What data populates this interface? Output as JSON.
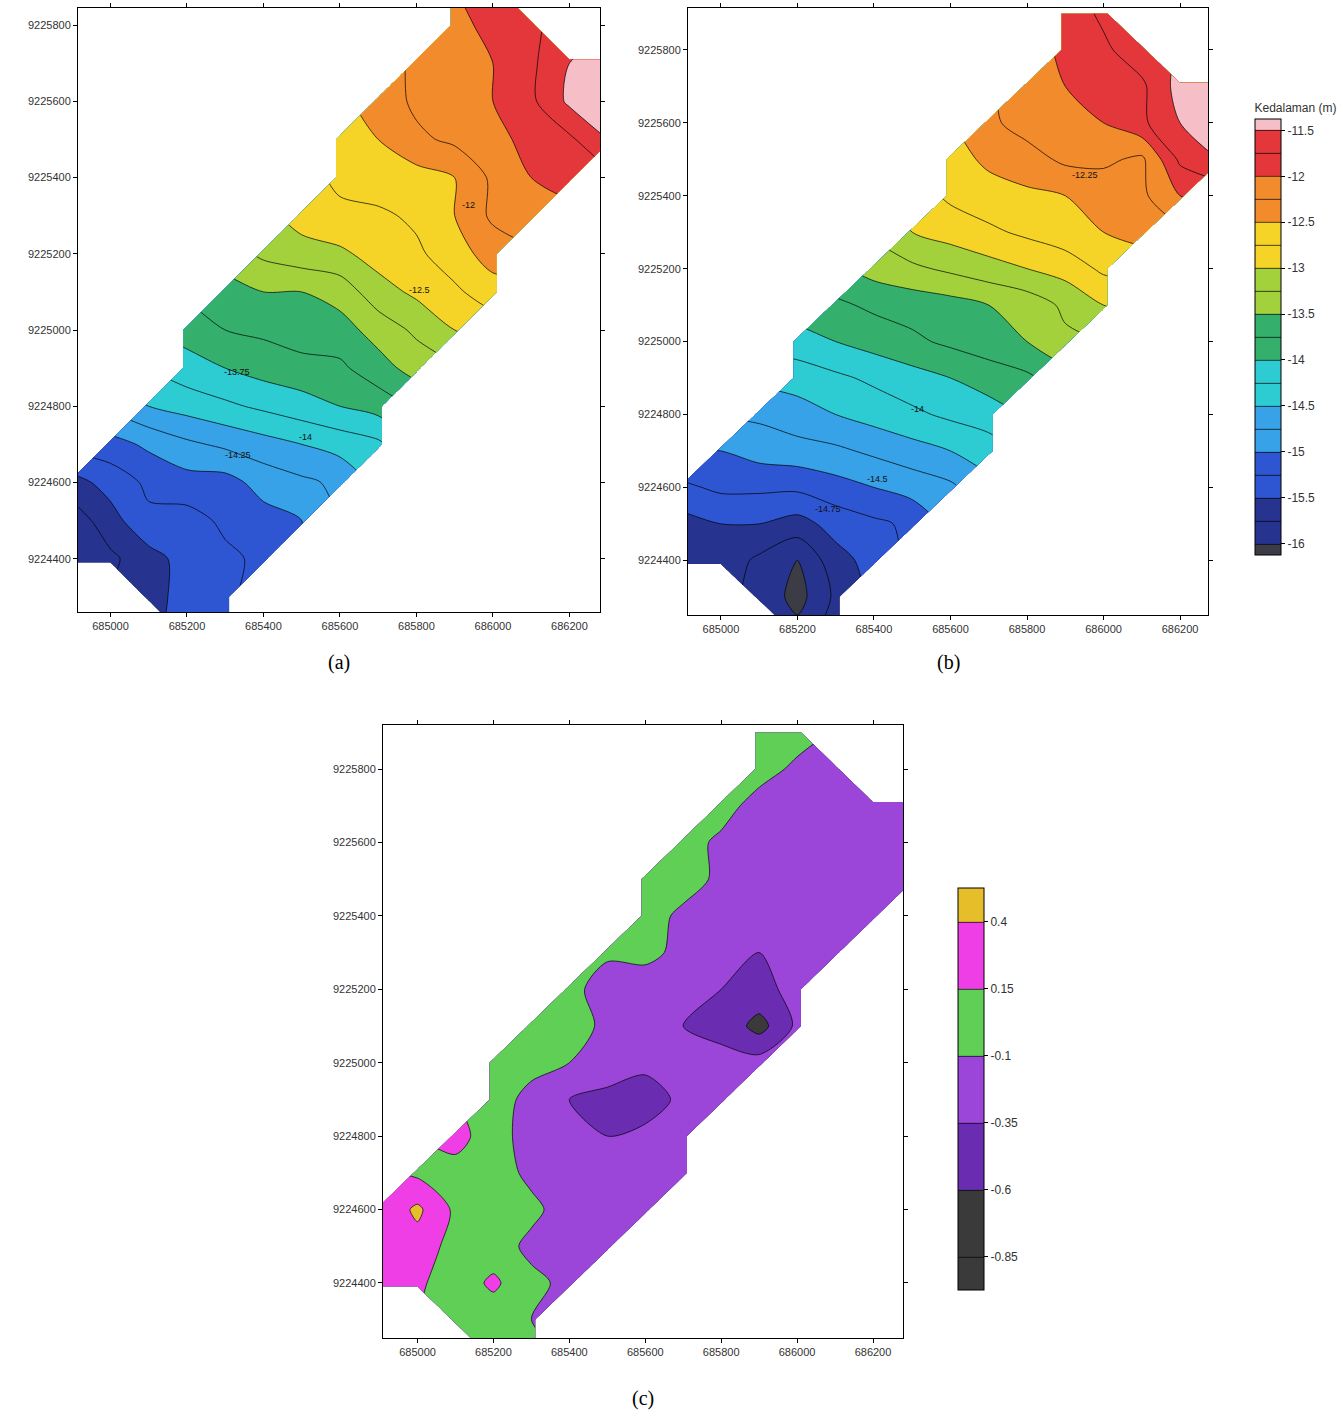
{
  "chart_data": [
    {
      "type": "contour",
      "panel": "(a)",
      "x": [
        684900,
        685000,
        685100,
        685200,
        685300,
        685400,
        685500,
        685600,
        685700,
        685800,
        685900,
        686000,
        686100,
        686200,
        686300
      ],
      "y": [
        9224200,
        9224300,
        9224400,
        9224500,
        9224600,
        9224700,
        9224800,
        9224900,
        9225000,
        9225100,
        9225200,
        9225300,
        9225400,
        9225500,
        9225600,
        9225700,
        9225800,
        9225900
      ],
      "z": [
        [
          null,
          null,
          null,
          -15.4,
          -15.3,
          null,
          null,
          null,
          null,
          null,
          null,
          null,
          null,
          null,
          null
        ],
        [
          null,
          null,
          -15.6,
          -15.4,
          -15.3,
          null,
          null,
          null,
          null,
          null,
          null,
          null,
          null,
          null,
          null
        ],
        [
          -15.95,
          -15.8,
          -15.6,
          -15.4,
          -15.3,
          -15.2,
          null,
          null,
          null,
          null,
          null,
          null,
          null,
          null,
          null
        ],
        [
          -15.9,
          -15.6,
          -15.3,
          -15.35,
          -15.2,
          -15.1,
          -15,
          null,
          null,
          null,
          null,
          null,
          null,
          null,
          null
        ],
        [
          -15.6,
          -15.4,
          -15.2,
          -15.1,
          -15.1,
          -14.9,
          -14.8,
          -14.7,
          null,
          null,
          null,
          null,
          null,
          null,
          null
        ],
        [
          null,
          -15.1,
          -14.95,
          -14.8,
          -14.7,
          -14.6,
          -14.5,
          -14.4,
          -14.3,
          null,
          null,
          null,
          null,
          null,
          null
        ],
        [
          null,
          null,
          -14.5,
          -14.4,
          -14.3,
          -14.2,
          -14.1,
          -14,
          -13.9,
          null,
          null,
          null,
          null,
          null,
          null
        ],
        [
          null,
          null,
          null,
          -14.1,
          -14,
          -13.9,
          -13.85,
          -13.8,
          -13.6,
          -13.4,
          null,
          null,
          null,
          null,
          null
        ],
        [
          null,
          null,
          null,
          -13.9,
          -13.75,
          -13.7,
          -13.6,
          -13.6,
          -13.4,
          -13.2,
          -13,
          null,
          null,
          null,
          null
        ],
        [
          null,
          null,
          null,
          null,
          -13.6,
          -13.5,
          -13.5,
          -13.4,
          -13.1,
          -12.95,
          -12.8,
          -12.6,
          null,
          null,
          null
        ],
        [
          null,
          null,
          null,
          null,
          null,
          -13.2,
          -13.1,
          -13.05,
          -12.9,
          -12.8,
          -12.6,
          -12.4,
          null,
          null,
          null
        ],
        [
          null,
          null,
          null,
          null,
          null,
          null,
          -12.9,
          -12.8,
          -12.8,
          -12.7,
          -12.5,
          -12.2,
          -12,
          null,
          null
        ],
        [
          null,
          null,
          null,
          null,
          null,
          null,
          null,
          -12.7,
          -12.6,
          -12.6,
          -12.5,
          -12.2,
          -12,
          -11.9,
          null
        ],
        [
          null,
          null,
          null,
          null,
          null,
          null,
          null,
          -12.6,
          -12.5,
          -12.3,
          -12.2,
          -12.1,
          -11.9,
          -11.8,
          -11.5
        ],
        [
          null,
          null,
          null,
          null,
          null,
          null,
          null,
          null,
          -12.4,
          -12.2,
          -12.1,
          -12,
          -11.8,
          -11.45,
          -11.4
        ],
        [
          null,
          null,
          null,
          null,
          null,
          null,
          null,
          null,
          null,
          -12.2,
          -12.1,
          -12,
          -11.8,
          -11.5,
          -11.4
        ],
        [
          null,
          null,
          null,
          null,
          null,
          null,
          null,
          null,
          null,
          null,
          -12.05,
          -11.95,
          -11.8,
          null,
          null
        ],
        [
          null,
          null,
          null,
          null,
          null,
          null,
          null,
          null,
          null,
          null,
          -12,
          -11.9,
          null,
          null,
          null
        ]
      ],
      "levels": {
        "start": -16,
        "end": -11.5,
        "size": 0.25
      },
      "color_breaks": [
        -16,
        -15.5,
        -15,
        -14.5,
        -14,
        -13.5,
        -13,
        -12.5,
        -12,
        -11.5
      ],
      "xlim": [
        684915,
        686280
      ],
      "ylim": [
        9224260,
        9225845
      ],
      "xticks": [
        685000,
        685200,
        685400,
        685600,
        685800,
        686000,
        686200
      ],
      "yticks": [
        9224400,
        9224600,
        9224800,
        9225000,
        9225200,
        9225400,
        9225600,
        9225800
      ],
      "labels": [
        {
          "x": 685935,
          "y": 9225328,
          "text": "-12"
        },
        {
          "x": 685809,
          "y": 9225104,
          "text": "-12.5"
        },
        {
          "x": 685332,
          "y": 9224889,
          "text": "-13.75"
        },
        {
          "x": 685509,
          "y": 9224719,
          "text": "-14"
        },
        {
          "x": 685334,
          "y": 9224671,
          "text": "-14.25"
        }
      ]
    },
    {
      "type": "contour",
      "panel": "(b)",
      "x": [
        684900,
        685000,
        685100,
        685200,
        685300,
        685400,
        685500,
        685600,
        685700,
        685800,
        685900,
        686000,
        686100,
        686200,
        686300
      ],
      "y": [
        9224200,
        9224300,
        9224400,
        9224500,
        9224600,
        9224700,
        9224800,
        9224900,
        9225000,
        9225100,
        9225200,
        9225300,
        9225400,
        9225500,
        9225600,
        9225700,
        9225800,
        9225900
      ],
      "z": [
        [
          null,
          null,
          null,
          -15.9,
          -15.6,
          null,
          null,
          null,
          null,
          null,
          null,
          null,
          null,
          null,
          null
        ],
        [
          null,
          null,
          -15.8,
          -16.1,
          -15.7,
          null,
          null,
          null,
          null,
          null,
          null,
          null,
          null,
          null,
          null
        ],
        [
          -15.6,
          -15.6,
          -15.8,
          -16,
          -15.6,
          -15.4,
          null,
          null,
          null,
          null,
          null,
          null,
          null,
          null,
          null
        ],
        [
          -15.6,
          -15.5,
          -15.5,
          -15.6,
          -15.4,
          -15.3,
          -15.2,
          null,
          null,
          null,
          null,
          null,
          null,
          null,
          null
        ],
        [
          -15.3,
          -15.2,
          -15.2,
          -15.2,
          -15.1,
          -15,
          -14.9,
          -14.8,
          null,
          null,
          null,
          null,
          null,
          null,
          null
        ],
        [
          null,
          -15,
          -14.9,
          -14.85,
          -14.8,
          -14.7,
          -14.6,
          -14.5,
          -14.4,
          null,
          null,
          null,
          null,
          null,
          null
        ],
        [
          null,
          null,
          -14.7,
          -14.6,
          -14.5,
          -14.4,
          -14.3,
          -14.2,
          -14.1,
          null,
          null,
          null,
          null,
          null,
          null
        ],
        [
          null,
          null,
          null,
          -14.4,
          -14.3,
          -14.2,
          -14.1,
          -14,
          -13.9,
          -13.8,
          null,
          null,
          null,
          null,
          null
        ],
        [
          null,
          null,
          null,
          -14.1,
          -14,
          -13.9,
          -13.8,
          -13.7,
          -13.6,
          -13.5,
          -13.3,
          null,
          null,
          null,
          null
        ],
        [
          null,
          null,
          null,
          null,
          -13.8,
          -13.7,
          -13.65,
          -13.6,
          -13.5,
          -13.4,
          -13.2,
          -13,
          null,
          null,
          null
        ],
        [
          null,
          null,
          null,
          null,
          null,
          -13.4,
          -13.3,
          -13.2,
          -13.1,
          -13,
          -12.9,
          -12.7,
          null,
          null,
          null
        ],
        [
          null,
          null,
          null,
          null,
          null,
          null,
          -13,
          -12.9,
          -12.8,
          -12.7,
          -12.6,
          -12.5,
          -12.4,
          null,
          null
        ],
        [
          null,
          null,
          null,
          null,
          null,
          null,
          null,
          -12.7,
          -12.6,
          -12.55,
          -12.5,
          -12.4,
          -12.3,
          -12,
          null
        ],
        [
          null,
          null,
          null,
          null,
          null,
          null,
          null,
          -12.6,
          -12.45,
          -12.35,
          -12.2,
          -12.2,
          -12.3,
          -11.7,
          -11.5
        ],
        [
          null,
          null,
          null,
          null,
          null,
          null,
          null,
          null,
          -12.3,
          -12.15,
          -12.1,
          -12,
          -11.8,
          -11.5,
          -11.4
        ],
        [
          null,
          null,
          null,
          null,
          null,
          null,
          null,
          null,
          null,
          -12.1,
          -12,
          -11.95,
          -11.8,
          -11.4,
          -11.3
        ],
        [
          null,
          null,
          null,
          null,
          null,
          null,
          null,
          null,
          null,
          null,
          -11.95,
          -11.8,
          -11.6,
          null,
          null
        ],
        [
          null,
          null,
          null,
          null,
          null,
          null,
          null,
          null,
          null,
          null,
          -11.9,
          -11.7,
          null,
          null,
          null
        ]
      ],
      "levels": {
        "start": -16,
        "end": -11.5,
        "size": 0.25
      },
      "color_breaks": [
        -16,
        -15.5,
        -15,
        -14.5,
        -14,
        -13.5,
        -13,
        -12.5,
        -12,
        -11.5
      ],
      "colorbar": {
        "title": "Kedalaman (m)",
        "ticks": [
          -16,
          -15.5,
          -15,
          -14.5,
          -14,
          -13.5,
          -13,
          -12.5,
          -12,
          -11.5
        ]
      },
      "xlim": [
        684914,
        686273
      ],
      "ylim": [
        9224250,
        9225915
      ],
      "xticks": [
        685000,
        685200,
        685400,
        685600,
        685800,
        686000,
        686200
      ],
      "yticks": [
        9224400,
        9224600,
        9224800,
        9225000,
        9225200,
        9225400,
        9225600,
        9225800
      ],
      "labels": [
        {
          "x": 685952,
          "y": 9225458,
          "text": "-12.25"
        },
        {
          "x": 685515,
          "y": 9224814,
          "text": "-14"
        },
        {
          "x": 685408,
          "y": 9224622,
          "text": "-14.5"
        },
        {
          "x": 685280,
          "y": 9224540,
          "text": "-14.75"
        }
      ]
    },
    {
      "type": "contour",
      "panel": "(c)",
      "x": [
        684900,
        685000,
        685100,
        685200,
        685300,
        685400,
        685500,
        685600,
        685700,
        685800,
        685900,
        686000,
        686100,
        686200,
        686300
      ],
      "y": [
        9224200,
        9224300,
        9224400,
        9224500,
        9224600,
        9224700,
        9224800,
        9224900,
        9225000,
        9225100,
        9225200,
        9225300,
        9225400,
        9225500,
        9225600,
        9225700,
        9225800,
        9225900
      ],
      "z": [
        [
          null,
          null,
          null,
          0,
          -0.05,
          null,
          null,
          null,
          null,
          null,
          null,
          null,
          null,
          null,
          null
        ],
        [
          null,
          null,
          0.05,
          0,
          -0.1,
          null,
          null,
          null,
          null,
          null,
          null,
          null,
          null,
          null,
          null
        ],
        [
          0.2,
          0.2,
          0,
          0.2,
          -0.05,
          -0.15,
          null,
          null,
          null,
          null,
          null,
          null,
          null,
          null,
          null
        ],
        [
          0.25,
          0.3,
          0.05,
          0,
          -0.15,
          -0.1,
          -0.2,
          null,
          null,
          null,
          null,
          null,
          null,
          null,
          null
        ],
        [
          0.2,
          0.45,
          0.1,
          0,
          -0.05,
          -0.2,
          -0.25,
          -0.2,
          null,
          null,
          null,
          null,
          null,
          null,
          null
        ],
        [
          null,
          0.1,
          0.05,
          0,
          -0.15,
          -0.2,
          -0.3,
          -0.3,
          -0.25,
          null,
          null,
          null,
          null,
          null,
          null
        ],
        [
          null,
          null,
          0.25,
          0,
          -0.2,
          -0.3,
          -0.35,
          -0.3,
          -0.25,
          null,
          null,
          null,
          null,
          null,
          null
        ],
        [
          null,
          null,
          null,
          0.05,
          -0.2,
          -0.35,
          -0.4,
          -0.45,
          -0.3,
          -0.2,
          null,
          null,
          null,
          null,
          null
        ],
        [
          null,
          null,
          null,
          0.05,
          0,
          -0.1,
          -0.25,
          -0.3,
          -0.3,
          -0.3,
          -0.25,
          null,
          null,
          null,
          null
        ],
        [
          null,
          null,
          null,
          null,
          0.05,
          0,
          -0.15,
          -0.3,
          -0.35,
          -0.4,
          -0.7,
          -0.3,
          null,
          null,
          null
        ],
        [
          null,
          null,
          null,
          null,
          null,
          0,
          -0.25,
          -0.3,
          -0.3,
          -0.35,
          -0.4,
          -0.3,
          null,
          null,
          null
        ],
        [
          null,
          null,
          null,
          null,
          null,
          null,
          -0.05,
          0,
          -0.2,
          -0.3,
          -0.35,
          -0.3,
          -0.25,
          null,
          null
        ],
        [
          null,
          null,
          null,
          null,
          null,
          null,
          null,
          0,
          -0.15,
          -0.3,
          -0.3,
          -0.35,
          -0.3,
          -0.25,
          null
        ],
        [
          null,
          null,
          null,
          null,
          null,
          null,
          null,
          0.05,
          0,
          -0.15,
          -0.2,
          -0.3,
          -0.3,
          -0.25,
          -0.2
        ],
        [
          null,
          null,
          null,
          null,
          null,
          null,
          null,
          null,
          0,
          -0.15,
          -0.2,
          -0.25,
          -0.3,
          -0.25,
          -0.2
        ],
        [
          null,
          null,
          null,
          null,
          null,
          null,
          null,
          null,
          null,
          0,
          -0.2,
          -0.3,
          -0.25,
          -0.2,
          -0.2
        ],
        [
          null,
          null,
          null,
          null,
          null,
          null,
          null,
          null,
          null,
          null,
          0,
          -0.15,
          -0.2,
          null,
          null
        ],
        [
          null,
          null,
          null,
          null,
          null,
          null,
          null,
          null,
          null,
          null,
          0,
          0,
          null,
          null,
          null
        ]
      ],
      "levels": {
        "start": -0.85,
        "end": 0.4,
        "size": 0.25
      },
      "color_breaks": [
        -0.85,
        -0.6,
        -0.35,
        -0.1,
        0.15,
        0.4
      ],
      "colorbar": {
        "ticks": [
          -0.85,
          -0.6,
          -0.35,
          -0.1,
          0.15,
          0.4
        ]
      },
      "xlim": [
        684909,
        686279
      ],
      "ylim": [
        9224250,
        9225920
      ],
      "xticks": [
        685000,
        685200,
        685400,
        685600,
        685800,
        686000,
        686200
      ],
      "yticks": [
        9224400,
        9224600,
        9224800,
        9225000,
        9225200,
        9225400,
        9225600,
        9225800
      ]
    }
  ]
}
